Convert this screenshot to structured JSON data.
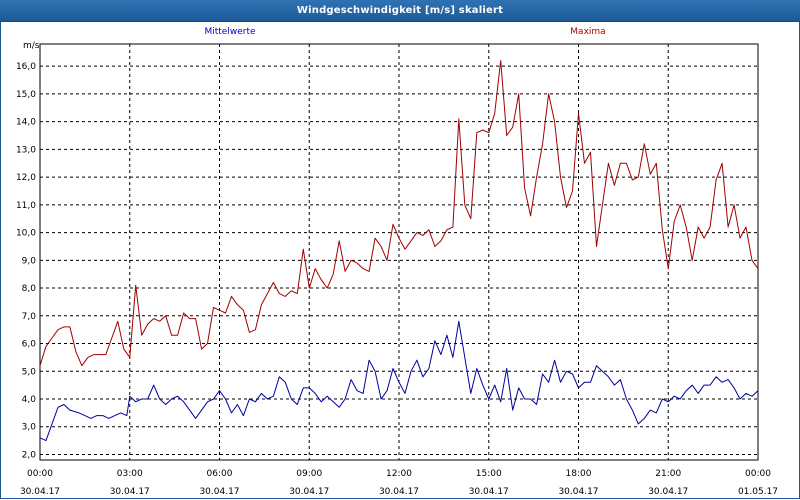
{
  "window": {
    "title": "Windgeschwindigkeit [m/s] skaliert"
  },
  "colors": {
    "title_bar": "#1d5a98",
    "mittelwerte": "#0000a0",
    "maxima": "#a00000"
  },
  "chart_data": {
    "type": "line",
    "title": "Windgeschwindigkeit [m/s] skaliert",
    "ylabel": "m/s",
    "ylim": [
      1.8,
      16.8
    ],
    "y_ticks": [
      "2,0",
      "3,0",
      "4,0",
      "5,0",
      "6,0",
      "7,0",
      "8,0",
      "9,0",
      "10,0",
      "11,0",
      "12,0",
      "13,0",
      "14,0",
      "15,0",
      "16,0"
    ],
    "x_ticks": [
      {
        "time": "00:00",
        "date": "30.04.17"
      },
      {
        "time": "03:00",
        "date": "30.04.17"
      },
      {
        "time": "06:00",
        "date": "30.04.17"
      },
      {
        "time": "09:00",
        "date": "30.04.17"
      },
      {
        "time": "12:00",
        "date": "30.04.17"
      },
      {
        "time": "15:00",
        "date": "30.04.17"
      },
      {
        "time": "18:00",
        "date": "30.04.17"
      },
      {
        "time": "21:00",
        "date": "30.04.17"
      },
      {
        "time": "00:00",
        "date": "01.05.17"
      }
    ],
    "grid": true,
    "x_range_hours": [
      0,
      24
    ],
    "series": [
      {
        "name": "Mittelwerte",
        "color": "#0000a0",
        "points": [
          [
            0,
            2.6
          ],
          [
            0.2,
            2.5
          ],
          [
            0.4,
            3.1
          ],
          [
            0.6,
            3.7
          ],
          [
            0.8,
            3.8
          ],
          [
            1.0,
            3.6
          ],
          [
            1.3,
            3.5
          ],
          [
            1.5,
            3.4
          ],
          [
            1.7,
            3.3
          ],
          [
            1.9,
            3.4
          ],
          [
            2.1,
            3.4
          ],
          [
            2.3,
            3.3
          ],
          [
            2.5,
            3.4
          ],
          [
            2.7,
            3.5
          ],
          [
            2.9,
            3.4
          ],
          [
            3.0,
            4.1
          ],
          [
            3.2,
            3.9
          ],
          [
            3.4,
            4.0
          ],
          [
            3.6,
            4.0
          ],
          [
            3.8,
            4.5
          ],
          [
            4.0,
            4.0
          ],
          [
            4.2,
            3.8
          ],
          [
            4.4,
            4.0
          ],
          [
            4.6,
            4.1
          ],
          [
            4.8,
            3.9
          ],
          [
            5.0,
            3.6
          ],
          [
            5.2,
            3.3
          ],
          [
            5.4,
            3.6
          ],
          [
            5.6,
            3.9
          ],
          [
            5.8,
            4.0
          ],
          [
            6.0,
            4.3
          ],
          [
            6.2,
            4.0
          ],
          [
            6.4,
            3.5
          ],
          [
            6.6,
            3.8
          ],
          [
            6.8,
            3.4
          ],
          [
            7.0,
            4.0
          ],
          [
            7.2,
            3.9
          ],
          [
            7.4,
            4.2
          ],
          [
            7.6,
            4.0
          ],
          [
            7.8,
            4.1
          ],
          [
            8.0,
            4.8
          ],
          [
            8.2,
            4.6
          ],
          [
            8.4,
            4.0
          ],
          [
            8.6,
            3.8
          ],
          [
            8.8,
            4.4
          ],
          [
            9.0,
            4.4
          ],
          [
            9.2,
            4.2
          ],
          [
            9.4,
            3.9
          ],
          [
            9.6,
            4.1
          ],
          [
            9.8,
            3.9
          ],
          [
            10.0,
            3.7
          ],
          [
            10.2,
            4.0
          ],
          [
            10.4,
            4.7
          ],
          [
            10.6,
            4.3
          ],
          [
            10.8,
            4.2
          ],
          [
            11.0,
            5.4
          ],
          [
            11.2,
            5.0
          ],
          [
            11.4,
            4.0
          ],
          [
            11.6,
            4.3
          ],
          [
            11.8,
            5.1
          ],
          [
            12.0,
            4.6
          ],
          [
            12.2,
            4.2
          ],
          [
            12.4,
            5.0
          ],
          [
            12.6,
            5.4
          ],
          [
            12.8,
            4.8
          ],
          [
            13.0,
            5.1
          ],
          [
            13.2,
            6.1
          ],
          [
            13.4,
            5.6
          ],
          [
            13.6,
            6.3
          ],
          [
            13.8,
            5.5
          ],
          [
            14.0,
            6.8
          ],
          [
            14.2,
            5.5
          ],
          [
            14.4,
            4.2
          ],
          [
            14.6,
            5.1
          ],
          [
            14.8,
            4.5
          ],
          [
            15.0,
            4.0
          ],
          [
            15.2,
            4.5
          ],
          [
            15.4,
            3.9
          ],
          [
            15.6,
            5.1
          ],
          [
            15.8,
            3.6
          ],
          [
            16.0,
            4.4
          ],
          [
            16.2,
            4.0
          ],
          [
            16.4,
            4.0
          ],
          [
            16.6,
            3.8
          ],
          [
            16.8,
            4.9
          ],
          [
            17.0,
            4.6
          ],
          [
            17.2,
            5.4
          ],
          [
            17.4,
            4.6
          ],
          [
            17.6,
            5.0
          ],
          [
            17.8,
            4.9
          ],
          [
            18.0,
            4.4
          ],
          [
            18.2,
            4.6
          ],
          [
            18.4,
            4.6
          ],
          [
            18.6,
            5.2
          ],
          [
            18.8,
            5.0
          ],
          [
            19.0,
            4.8
          ],
          [
            19.2,
            4.5
          ],
          [
            19.4,
            4.7
          ],
          [
            19.6,
            4.0
          ],
          [
            19.8,
            3.6
          ],
          [
            20.0,
            3.1
          ],
          [
            20.2,
            3.3
          ],
          [
            20.4,
            3.6
          ],
          [
            20.6,
            3.5
          ],
          [
            20.8,
            4.0
          ],
          [
            21.0,
            3.9
          ],
          [
            21.2,
            4.1
          ],
          [
            21.4,
            4.0
          ],
          [
            21.6,
            4.3
          ],
          [
            21.8,
            4.5
          ],
          [
            22.0,
            4.2
          ],
          [
            22.2,
            4.5
          ],
          [
            22.4,
            4.5
          ],
          [
            22.6,
            4.8
          ],
          [
            22.8,
            4.6
          ],
          [
            23.0,
            4.7
          ],
          [
            23.2,
            4.4
          ],
          [
            23.4,
            4.0
          ],
          [
            23.6,
            4.2
          ],
          [
            23.8,
            4.1
          ],
          [
            24.0,
            4.3
          ]
        ]
      },
      {
        "name": "Maxima",
        "color": "#a00000",
        "points": [
          [
            0,
            5.2
          ],
          [
            0.2,
            5.9
          ],
          [
            0.4,
            6.2
          ],
          [
            0.6,
            6.5
          ],
          [
            0.8,
            6.6
          ],
          [
            1.0,
            6.6
          ],
          [
            1.2,
            5.7
          ],
          [
            1.4,
            5.2
          ],
          [
            1.6,
            5.5
          ],
          [
            1.8,
            5.6
          ],
          [
            2.0,
            5.6
          ],
          [
            2.2,
            5.6
          ],
          [
            2.4,
            6.2
          ],
          [
            2.6,
            6.8
          ],
          [
            2.8,
            5.8
          ],
          [
            3.0,
            5.5
          ],
          [
            3.2,
            8.1
          ],
          [
            3.4,
            6.3
          ],
          [
            3.6,
            6.7
          ],
          [
            3.8,
            6.9
          ],
          [
            4.0,
            6.8
          ],
          [
            4.2,
            7.0
          ],
          [
            4.4,
            6.3
          ],
          [
            4.6,
            6.3
          ],
          [
            4.8,
            7.1
          ],
          [
            5.0,
            6.9
          ],
          [
            5.2,
            6.9
          ],
          [
            5.4,
            5.8
          ],
          [
            5.6,
            6.0
          ],
          [
            5.8,
            7.3
          ],
          [
            6.0,
            7.2
          ],
          [
            6.2,
            7.1
          ],
          [
            6.4,
            7.7
          ],
          [
            6.6,
            7.4
          ],
          [
            6.8,
            7.2
          ],
          [
            7.0,
            6.4
          ],
          [
            7.2,
            6.5
          ],
          [
            7.4,
            7.4
          ],
          [
            7.6,
            7.8
          ],
          [
            7.8,
            8.2
          ],
          [
            8.0,
            7.8
          ],
          [
            8.2,
            7.7
          ],
          [
            8.4,
            7.9
          ],
          [
            8.6,
            7.8
          ],
          [
            8.8,
            9.4
          ],
          [
            9.0,
            8.0
          ],
          [
            9.2,
            8.7
          ],
          [
            9.4,
            8.3
          ],
          [
            9.6,
            8.0
          ],
          [
            9.8,
            8.5
          ],
          [
            10.0,
            9.7
          ],
          [
            10.2,
            8.6
          ],
          [
            10.4,
            9.0
          ],
          [
            10.6,
            8.9
          ],
          [
            10.8,
            8.7
          ],
          [
            11.0,
            8.6
          ],
          [
            11.2,
            9.8
          ],
          [
            11.4,
            9.5
          ],
          [
            11.6,
            9.0
          ],
          [
            11.8,
            10.3
          ],
          [
            12.0,
            9.8
          ],
          [
            12.2,
            9.4
          ],
          [
            12.4,
            9.7
          ],
          [
            12.6,
            10.0
          ],
          [
            12.8,
            9.9
          ],
          [
            13.0,
            10.1
          ],
          [
            13.2,
            9.5
          ],
          [
            13.4,
            9.7
          ],
          [
            13.6,
            10.1
          ],
          [
            13.8,
            10.2
          ],
          [
            14.0,
            14.1
          ],
          [
            14.2,
            11.0
          ],
          [
            14.4,
            10.5
          ],
          [
            14.6,
            13.6
          ],
          [
            14.8,
            13.7
          ],
          [
            15.0,
            13.6
          ],
          [
            15.2,
            14.3
          ],
          [
            15.4,
            16.2
          ],
          [
            15.6,
            13.5
          ],
          [
            15.8,
            13.8
          ],
          [
            16.0,
            15.0
          ],
          [
            16.2,
            11.6
          ],
          [
            16.4,
            10.6
          ],
          [
            16.6,
            12.0
          ],
          [
            16.8,
            13.2
          ],
          [
            17.0,
            15.0
          ],
          [
            17.2,
            14.0
          ],
          [
            17.4,
            12.0
          ],
          [
            17.6,
            10.9
          ],
          [
            17.8,
            11.5
          ],
          [
            18.0,
            14.3
          ],
          [
            18.2,
            12.5
          ],
          [
            18.4,
            12.9
          ],
          [
            18.6,
            9.5
          ],
          [
            18.8,
            11.0
          ],
          [
            19.0,
            12.5
          ],
          [
            19.2,
            11.7
          ],
          [
            19.4,
            12.5
          ],
          [
            19.6,
            12.5
          ],
          [
            19.8,
            11.9
          ],
          [
            20.0,
            12.0
          ],
          [
            20.2,
            13.2
          ],
          [
            20.4,
            12.1
          ],
          [
            20.6,
            12.5
          ],
          [
            20.8,
            10.1
          ],
          [
            21.0,
            8.7
          ],
          [
            21.2,
            10.4
          ],
          [
            21.4,
            11.0
          ],
          [
            21.6,
            10.2
          ],
          [
            21.8,
            9.0
          ],
          [
            22.0,
            10.2
          ],
          [
            22.2,
            9.8
          ],
          [
            22.4,
            10.2
          ],
          [
            22.6,
            11.9
          ],
          [
            22.8,
            12.5
          ],
          [
            23.0,
            10.2
          ],
          [
            23.2,
            11.0
          ],
          [
            23.4,
            9.8
          ],
          [
            23.6,
            10.2
          ],
          [
            23.8,
            9.0
          ],
          [
            24.0,
            8.7
          ]
        ]
      }
    ]
  }
}
